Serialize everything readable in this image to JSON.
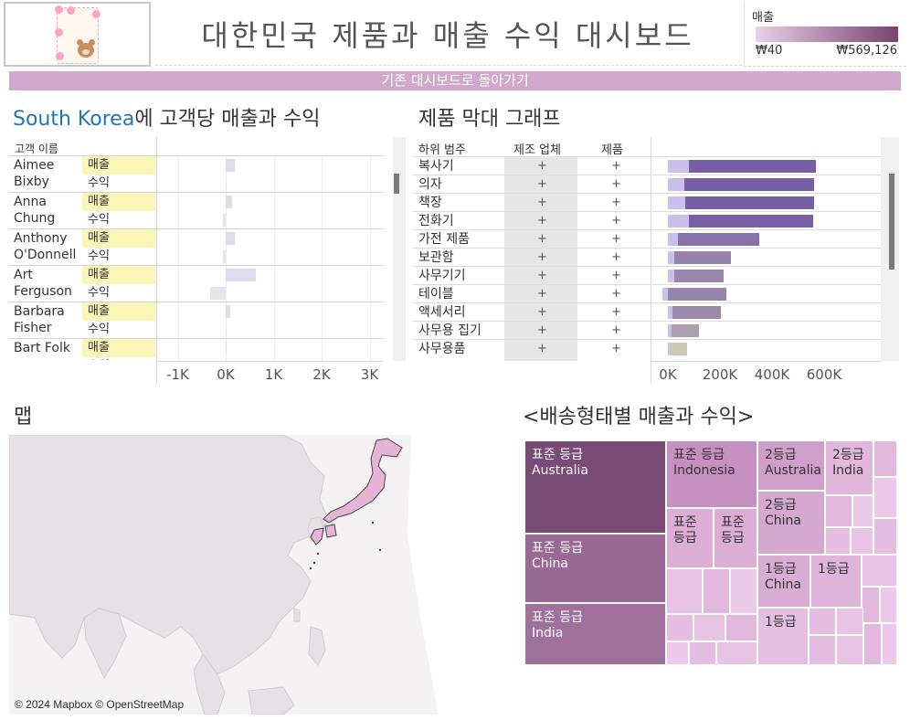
{
  "header": {
    "title": "대한민국 제품과 매출 수익 대시보드",
    "back_link": "기존 대시보드로 돌아가기"
  },
  "legend": {
    "title": "매출",
    "min_label": "₩40",
    "max_label": "₩569,126",
    "colors": [
      "#ead0e6",
      "#77426f"
    ]
  },
  "customer_panel": {
    "title_country": "South Korea",
    "title_rest": "에 고객당 매출과 수익",
    "header": "고객 이름",
    "axis_ticks": [
      "-1K",
      "0K",
      "1K",
      "2K",
      "3K"
    ],
    "customers": [
      {
        "name": "Aimee Bixby",
        "sales_label": "매출",
        "profit_label": "수익",
        "sales": 190,
        "profit": 0
      },
      {
        "name": "Anna Chung",
        "sales_label": "매출",
        "profit_label": "수익",
        "sales": 140,
        "profit": -60
      },
      {
        "name": "Anthony O'Donnell",
        "sales_label": "매출",
        "profit_label": "수익",
        "sales": 190,
        "profit": -60
      },
      {
        "name": "Art Ferguson",
        "sales_label": "매출",
        "profit_label": "수익",
        "sales": 620,
        "profit": -320
      },
      {
        "name": "Barbara Fisher",
        "sales_label": "매출",
        "profit_label": "수익",
        "sales": 100,
        "profit": 0
      },
      {
        "name": "Bart Folk",
        "sales_label": "매출",
        "profit_label": "수익",
        "sales": 0,
        "profit": 0
      }
    ]
  },
  "product_panel": {
    "title": "제품 막대 그래프",
    "headers": {
      "sub_category": "하위 범주",
      "manufacturer": "제조 업체",
      "product": "제품"
    },
    "plus_glyph": "+",
    "axis_ticks": [
      "0K",
      "200K",
      "400K",
      "600K"
    ],
    "rows": [
      {
        "sub_category": "복사기",
        "sales": 569126,
        "profit": 80000
      },
      {
        "sales": 563000,
        "sub_category": "의자",
        "profit": 62000
      },
      {
        "sales": 562000,
        "sub_category": "책장",
        "profit": 68000
      },
      {
        "sales": 558000,
        "sub_category": "전화기",
        "profit": 80000
      },
      {
        "sales": 351000,
        "sub_category": "가전 제품",
        "profit": 40000
      },
      {
        "sales": 242000,
        "sub_category": "보관함",
        "profit": 24000
      },
      {
        "sales": 215000,
        "sub_category": "사무기기",
        "profit": 24000
      },
      {
        "sales": 225000,
        "sub_category": "테이블",
        "profit": -20000
      },
      {
        "sales": 202000,
        "sub_category": "액세서리",
        "profit": 16000
      },
      {
        "sales": 118000,
        "sub_category": "사무용 집기",
        "profit": 14000
      },
      {
        "sales": 75000,
        "sub_category": "사무용품",
        "profit": 8000
      }
    ]
  },
  "map": {
    "title": "맵",
    "attribution": "© 2024 Mapbox © OpenStreetMap",
    "highlight_color": "#e6b3d6"
  },
  "treemap": {
    "title": "<배송형태별 매출과 수익>",
    "cells": [
      {
        "label": "표준 등급\nAustralia",
        "color": "#7b4b78"
      },
      {
        "label": "표준 등급\nChina",
        "color": "#9a6996"
      },
      {
        "label": "표준 등급\nIndia",
        "color": "#a0709c"
      },
      {
        "label": "표준 등급\nIndonesia",
        "color": "#c690c1"
      },
      {
        "label": "표준\n등급",
        "color": "#dcaed6"
      },
      {
        "label": "표준\n등급",
        "color": "#dcaed6"
      },
      {
        "label": "2등급\nAustralia",
        "color": "#cf9fca"
      },
      {
        "label": "2등급\nIndia",
        "color": "#e1b8dc"
      },
      {
        "label": "2등급\nChina",
        "color": "#d5a8d0"
      },
      {
        "label": "1등급\nChina",
        "color": "#d8acd3"
      },
      {
        "label": "1등급",
        "color": "#dfb4da"
      },
      {
        "label": "1등급",
        "color": "#e4bfe0"
      }
    ]
  }
}
